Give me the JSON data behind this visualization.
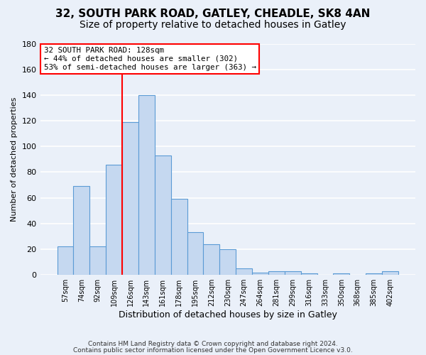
{
  "title1": "32, SOUTH PARK ROAD, GATLEY, CHEADLE, SK8 4AN",
  "title2": "Size of property relative to detached houses in Gatley",
  "xlabel": "Distribution of detached houses by size in Gatley",
  "ylabel": "Number of detached properties",
  "bin_labels": [
    "57sqm",
    "74sqm",
    "92sqm",
    "109sqm",
    "126sqm",
    "143sqm",
    "161sqm",
    "178sqm",
    "195sqm",
    "212sqm",
    "230sqm",
    "247sqm",
    "264sqm",
    "281sqm",
    "299sqm",
    "316sqm",
    "333sqm",
    "350sqm",
    "368sqm",
    "385sqm",
    "402sqm"
  ],
  "bar_heights": [
    22,
    69,
    22,
    86,
    119,
    140,
    93,
    59,
    33,
    24,
    20,
    5,
    2,
    3,
    3,
    1,
    0,
    1,
    0,
    1,
    3
  ],
  "bar_color": "#c5d8f0",
  "bar_edge_color": "#5b9bd5",
  "vline_color": "red",
  "property_bin_index": 4,
  "annotation_line1": "32 SOUTH PARK ROAD: 128sqm",
  "annotation_line2": "← 44% of detached houses are smaller (302)",
  "annotation_line3": "53% of semi-detached houses are larger (363) →",
  "annotation_box_color": "white",
  "annotation_box_edge_color": "red",
  "ylim": [
    0,
    180
  ],
  "yticks": [
    0,
    20,
    40,
    60,
    80,
    100,
    120,
    140,
    160,
    180
  ],
  "footer1": "Contains HM Land Registry data © Crown copyright and database right 2024.",
  "footer2": "Contains public sector information licensed under the Open Government Licence v3.0.",
  "bg_color": "#eaf0f9",
  "grid_color": "white",
  "title_fontsize": 11,
  "subtitle_fontsize": 10
}
